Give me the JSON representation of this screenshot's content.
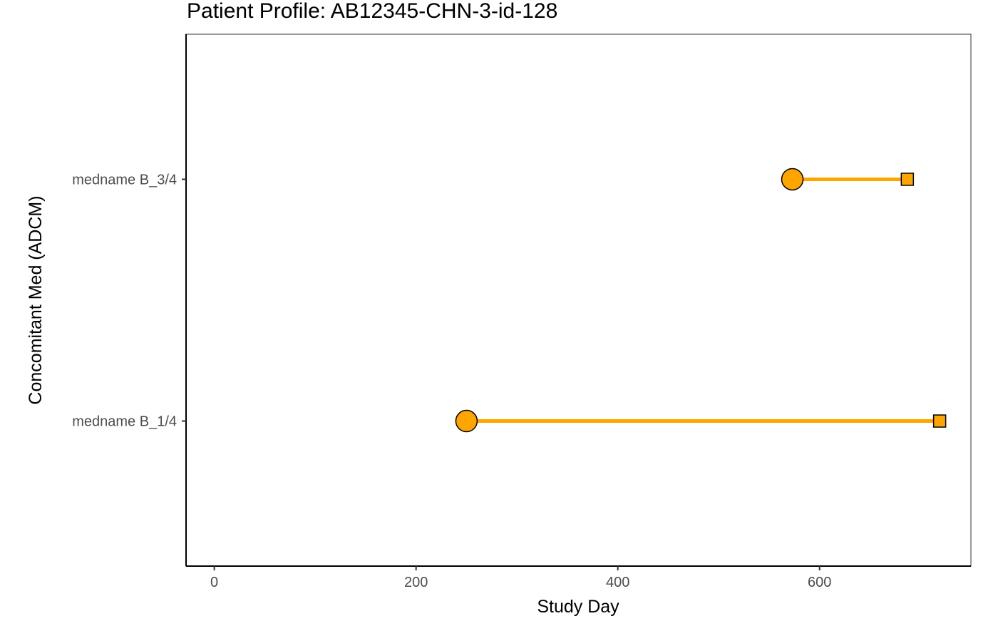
{
  "chart_data": {
    "type": "timeline",
    "title": "Patient Profile:  AB12345-CHN-3-id-128",
    "xlabel": "Study Day",
    "ylabel": "Concomitant Med (ADCM)",
    "xlim": [
      -28,
      750
    ],
    "x_ticks": [
      0,
      200,
      400,
      600
    ],
    "categories": [
      "medname B_1/4",
      "medname B_3/4"
    ],
    "segments": [
      {
        "category": "mednameB_1/4",
        "start": 250,
        "end": 719
      },
      {
        "category": "mednameB_3/4",
        "start": 573,
        "end": 687
      }
    ],
    "start_marker": "circle",
    "end_marker": "square",
    "color": "#FFA500",
    "grid": false
  }
}
